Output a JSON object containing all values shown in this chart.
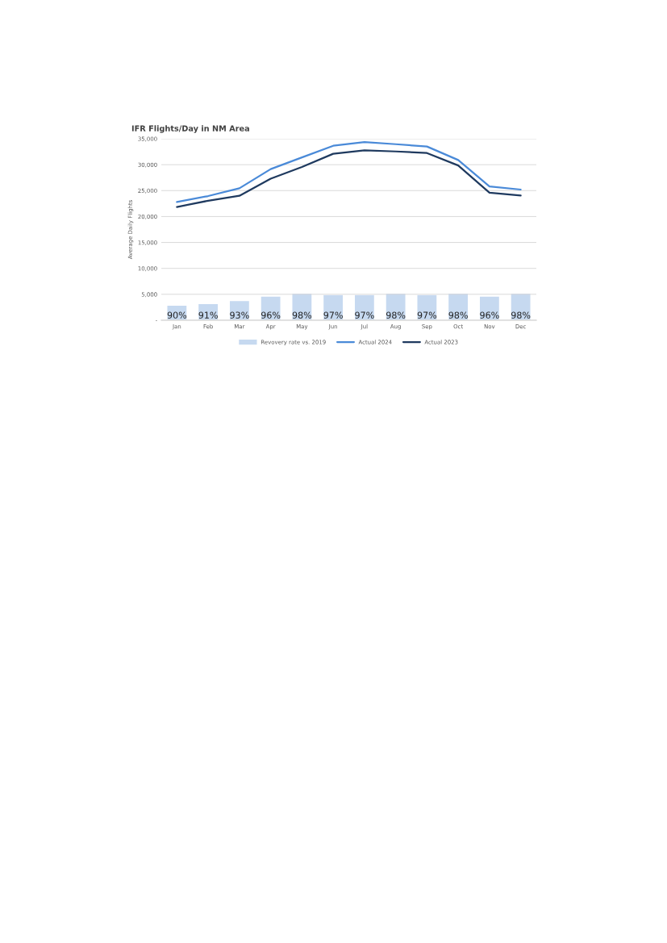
{
  "chart_data": {
    "type": "line",
    "title": "IFR Flights/Day in NM Area",
    "ylabel": "Average Daily Flights",
    "categories": [
      "Jan",
      "Feb",
      "Mar",
      "Apr",
      "May",
      "Jun",
      "Jul",
      "Aug",
      "Sep",
      "Oct",
      "Nov",
      "Dec"
    ],
    "series": [
      {
        "name": "Revovery rate vs. 2019",
        "type": "bar",
        "axis": "y2",
        "color": "#c6d9f0",
        "values": [
          90,
          91,
          93,
          96,
          98,
          97,
          97,
          98,
          97,
          98,
          96,
          98
        ],
        "value_labels": [
          "90%",
          "91%",
          "93%",
          "96%",
          "98%",
          "97%",
          "97%",
          "98%",
          "97%",
          "98%",
          "96%",
          "98%"
        ]
      },
      {
        "name": "Actual 2024",
        "color": "#4a8ad8",
        "values": [
          22800,
          23950,
          25450,
          29150,
          31400,
          33650,
          34350,
          33950,
          33500,
          30900,
          25800,
          25200
        ]
      },
      {
        "name": "Actual 2023",
        "color": "#1f3a5f",
        "values": [
          21850,
          23050,
          24000,
          27300,
          29550,
          32100,
          32750,
          32550,
          32250,
          29850,
          24600,
          24050
        ]
      }
    ],
    "ylim": [
      0,
      35000
    ],
    "yticks": [
      {
        "value": 0,
        "label": "-"
      },
      {
        "value": 5000,
        "label": "5,000"
      },
      {
        "value": 10000,
        "label": "10,000"
      },
      {
        "value": 15000,
        "label": "15,000"
      },
      {
        "value": 20000,
        "label": "20,000"
      },
      {
        "value": 25000,
        "label": "25,000"
      },
      {
        "value": 30000,
        "label": "30,000"
      },
      {
        "value": 35000,
        "label": "35,000"
      }
    ],
    "y2lim": [
      80,
      200
    ],
    "tick_labels": "xy",
    "grid": "y",
    "legend": "bottom",
    "marker": "none",
    "line_style": "solid"
  }
}
